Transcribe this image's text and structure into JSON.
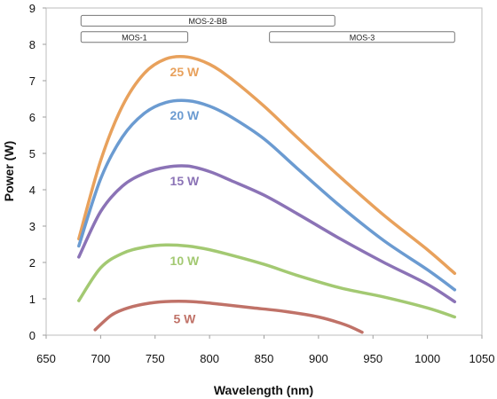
{
  "chart_data": {
    "type": "line",
    "xlabel": "Wavelength (nm)",
    "ylabel": "Power (W)",
    "xlim": [
      650,
      1050
    ],
    "ylim": [
      0,
      9
    ],
    "xticks": [
      650,
      700,
      750,
      800,
      850,
      900,
      950,
      1000,
      1050
    ],
    "yticks": [
      0,
      1,
      2,
      3,
      4,
      5,
      6,
      7,
      8,
      9
    ],
    "grid": false,
    "ranges": [
      {
        "label": "MOS-2-BB",
        "x": [
          682,
          915
        ],
        "y": 8.65
      },
      {
        "label": "MOS-1",
        "x": [
          682,
          780
        ],
        "y": 8.2
      },
      {
        "label": "MOS-3",
        "x": [
          855,
          1025
        ],
        "y": 8.2
      }
    ],
    "series": [
      {
        "name": "25 W",
        "color": "#e8a15c",
        "points": [
          [
            680,
            2.65
          ],
          [
            700,
            4.8
          ],
          [
            720,
            6.3
          ],
          [
            740,
            7.2
          ],
          [
            760,
            7.6
          ],
          [
            780,
            7.65
          ],
          [
            800,
            7.45
          ],
          [
            820,
            7.05
          ],
          [
            850,
            6.3
          ],
          [
            880,
            5.45
          ],
          [
            920,
            4.35
          ],
          [
            960,
            3.3
          ],
          [
            1000,
            2.35
          ],
          [
            1025,
            1.7
          ]
        ]
      },
      {
        "name": "20 W",
        "color": "#6b9bd1",
        "points": [
          [
            680,
            2.45
          ],
          [
            700,
            4.3
          ],
          [
            720,
            5.45
          ],
          [
            740,
            6.1
          ],
          [
            760,
            6.4
          ],
          [
            780,
            6.45
          ],
          [
            800,
            6.3
          ],
          [
            820,
            6.0
          ],
          [
            850,
            5.4
          ],
          [
            880,
            4.6
          ],
          [
            920,
            3.55
          ],
          [
            960,
            2.6
          ],
          [
            1000,
            1.8
          ],
          [
            1025,
            1.25
          ]
        ]
      },
      {
        "name": "15 W",
        "color": "#8b73b6",
        "points": [
          [
            680,
            2.15
          ],
          [
            700,
            3.4
          ],
          [
            720,
            4.1
          ],
          [
            740,
            4.45
          ],
          [
            760,
            4.62
          ],
          [
            780,
            4.65
          ],
          [
            800,
            4.5
          ],
          [
            820,
            4.25
          ],
          [
            850,
            3.85
          ],
          [
            880,
            3.35
          ],
          [
            920,
            2.65
          ],
          [
            960,
            2.0
          ],
          [
            1000,
            1.4
          ],
          [
            1025,
            0.92
          ]
        ]
      },
      {
        "name": "10 W",
        "color": "#a3c972",
        "points": [
          [
            680,
            0.95
          ],
          [
            700,
            1.85
          ],
          [
            720,
            2.25
          ],
          [
            740,
            2.42
          ],
          [
            760,
            2.48
          ],
          [
            780,
            2.45
          ],
          [
            800,
            2.35
          ],
          [
            820,
            2.2
          ],
          [
            850,
            1.95
          ],
          [
            880,
            1.65
          ],
          [
            920,
            1.3
          ],
          [
            960,
            1.05
          ],
          [
            1000,
            0.75
          ],
          [
            1025,
            0.5
          ]
        ]
      },
      {
        "name": "5 W",
        "color": "#c07268",
        "points": [
          [
            695,
            0.15
          ],
          [
            710,
            0.55
          ],
          [
            725,
            0.75
          ],
          [
            745,
            0.88
          ],
          [
            765,
            0.93
          ],
          [
            785,
            0.92
          ],
          [
            810,
            0.85
          ],
          [
            840,
            0.75
          ],
          [
            870,
            0.65
          ],
          [
            900,
            0.5
          ],
          [
            925,
            0.28
          ],
          [
            940,
            0.08
          ]
        ]
      }
    ],
    "labels": [
      {
        "text": "25 W",
        "x": 777,
        "y": 7.25,
        "color": "#e8a15c"
      },
      {
        "text": "20 W",
        "x": 777,
        "y": 6.05,
        "color": "#6b9bd1"
      },
      {
        "text": "15 W",
        "x": 777,
        "y": 4.25,
        "color": "#8b73b6"
      },
      {
        "text": "10 W",
        "x": 777,
        "y": 2.05,
        "color": "#a3c972"
      },
      {
        "text": "5 W",
        "x": 777,
        "y": 0.45,
        "color": "#c07268"
      }
    ]
  }
}
